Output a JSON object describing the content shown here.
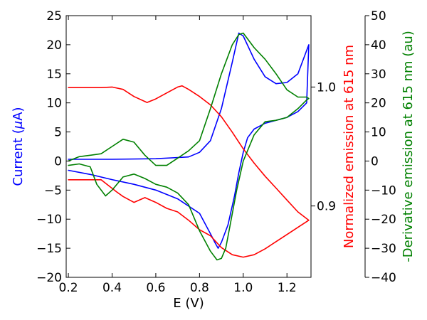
{
  "chart_data": {
    "type": "line",
    "xlabel": "E (V)",
    "xlim": [
      0.19,
      1.31
    ],
    "xticks": [
      "0.2",
      "0.4",
      "0.6",
      "0.8",
      "1.0",
      "1.2"
    ],
    "axes": {
      "left": {
        "label_prefix": "Current (",
        "label_symbol": "μ",
        "label_suffix": "A)",
        "color": "#0000ff",
        "ylim": [
          -20,
          25
        ],
        "ticks": [
          "25",
          "20",
          "15",
          "10",
          "5",
          "0",
          "−5",
          "−10",
          "−15",
          "−20"
        ]
      },
      "right_inner": {
        "label": "Normalized emission at 615 nm",
        "color": "#ff0000",
        "ylim": [
          0.84,
          1.06
        ],
        "ticks": [
          "1.0",
          "0.9"
        ]
      },
      "right_outer": {
        "label": "-Derivative emission at 615 nm (au)",
        "color": "#008000",
        "ylim": [
          -40,
          50
        ],
        "ticks": [
          "50",
          "40",
          "30",
          "20",
          "10",
          "0",
          "−10",
          "−20",
          "−30",
          "−40"
        ]
      }
    },
    "series": [
      {
        "axis": "left",
        "color": "#0000ff",
        "points": [
          [
            0.2,
            0.3
          ],
          [
            0.4,
            0.3
          ],
          [
            0.6,
            0.4
          ],
          [
            0.75,
            0.7
          ],
          [
            0.8,
            1.5
          ],
          [
            0.85,
            3.5
          ],
          [
            0.9,
            9.0
          ],
          [
            0.95,
            17.0
          ],
          [
            0.98,
            22.0
          ],
          [
            1.0,
            21.5
          ],
          [
            1.05,
            17.5
          ],
          [
            1.1,
            14.5
          ],
          [
            1.15,
            13.3
          ],
          [
            1.2,
            13.5
          ],
          [
            1.25,
            15.0
          ],
          [
            1.3,
            20.0
          ],
          [
            1.29,
            10.0
          ],
          [
            1.25,
            8.5
          ],
          [
            1.2,
            7.5
          ],
          [
            1.15,
            7.0
          ],
          [
            1.1,
            6.5
          ],
          [
            1.05,
            5.5
          ],
          [
            1.02,
            4.0
          ],
          [
            1.0,
            1.5
          ],
          [
            0.98,
            -2.0
          ],
          [
            0.96,
            -6.0
          ],
          [
            0.93,
            -11.0
          ],
          [
            0.9,
            -14.0
          ],
          [
            0.885,
            -15.0
          ],
          [
            0.87,
            -14.0
          ],
          [
            0.85,
            -12.5
          ],
          [
            0.8,
            -9.0
          ],
          [
            0.7,
            -6.5
          ],
          [
            0.6,
            -5.0
          ],
          [
            0.5,
            -4.0
          ],
          [
            0.4,
            -3.2
          ],
          [
            0.3,
            -2.3
          ],
          [
            0.2,
            -1.6
          ]
        ]
      },
      {
        "axis": "right_inner",
        "color": "#ff0000",
        "points": [
          [
            0.2,
            0.9995
          ],
          [
            0.35,
            0.9995
          ],
          [
            0.4,
            1.0
          ],
          [
            0.45,
            0.998
          ],
          [
            0.5,
            0.992
          ],
          [
            0.56,
            0.987
          ],
          [
            0.6,
            0.99
          ],
          [
            0.65,
            0.995
          ],
          [
            0.7,
            1.0
          ],
          [
            0.72,
            1.001
          ],
          [
            0.75,
            0.998
          ],
          [
            0.8,
            0.992
          ],
          [
            0.85,
            0.985
          ],
          [
            0.9,
            0.975
          ],
          [
            0.95,
            0.962
          ],
          [
            1.0,
            0.948
          ],
          [
            1.05,
            0.936
          ],
          [
            1.1,
            0.925
          ],
          [
            1.15,
            0.915
          ],
          [
            1.2,
            0.905
          ],
          [
            1.25,
            0.895
          ],
          [
            1.3,
            0.888
          ],
          [
            1.25,
            0.882
          ],
          [
            1.2,
            0.876
          ],
          [
            1.15,
            0.87
          ],
          [
            1.1,
            0.864
          ],
          [
            1.05,
            0.859
          ],
          [
            1.0,
            0.857
          ],
          [
            0.95,
            0.859
          ],
          [
            0.9,
            0.865
          ],
          [
            0.85,
            0.875
          ],
          [
            0.8,
            0.88
          ],
          [
            0.75,
            0.888
          ],
          [
            0.7,
            0.895
          ],
          [
            0.65,
            0.898
          ],
          [
            0.6,
            0.903
          ],
          [
            0.55,
            0.907
          ],
          [
            0.5,
            0.903
          ],
          [
            0.45,
            0.908
          ],
          [
            0.42,
            0.912
          ],
          [
            0.35,
            0.922
          ],
          [
            0.2,
            0.922
          ]
        ]
      },
      {
        "axis": "right_outer",
        "color": "#008000",
        "points": [
          [
            0.2,
            0.0
          ],
          [
            0.25,
            1.5
          ],
          [
            0.3,
            2.0
          ],
          [
            0.35,
            2.5
          ],
          [
            0.4,
            5.0
          ],
          [
            0.45,
            7.5
          ],
          [
            0.5,
            6.5
          ],
          [
            0.55,
            2.0
          ],
          [
            0.6,
            -1.5
          ],
          [
            0.65,
            -1.5
          ],
          [
            0.7,
            1.0
          ],
          [
            0.75,
            3.5
          ],
          [
            0.8,
            7.0
          ],
          [
            0.85,
            18.0
          ],
          [
            0.9,
            30.0
          ],
          [
            0.95,
            40.0
          ],
          [
            0.98,
            43.5
          ],
          [
            1.0,
            44.0
          ],
          [
            1.05,
            39.0
          ],
          [
            1.1,
            35.0
          ],
          [
            1.15,
            30.0
          ],
          [
            1.2,
            24.5
          ],
          [
            1.25,
            22.0
          ],
          [
            1.29,
            22.0
          ],
          [
            1.3,
            21.5
          ],
          [
            1.29,
            21.0
          ],
          [
            1.25,
            18.0
          ],
          [
            1.2,
            15.0
          ],
          [
            1.15,
            14.0
          ],
          [
            1.1,
            13.5
          ],
          [
            1.05,
            9.0
          ],
          [
            1.0,
            0.0
          ],
          [
            0.97,
            -10.0
          ],
          [
            0.94,
            -22.0
          ],
          [
            0.92,
            -30.0
          ],
          [
            0.9,
            -33.5
          ],
          [
            0.88,
            -34.0
          ],
          [
            0.85,
            -31.0
          ],
          [
            0.8,
            -24.0
          ],
          [
            0.75,
            -15.0
          ],
          [
            0.7,
            -11.0
          ],
          [
            0.65,
            -9.0
          ],
          [
            0.6,
            -8.0
          ],
          [
            0.55,
            -6.0
          ],
          [
            0.5,
            -4.5
          ],
          [
            0.45,
            -5.5
          ],
          [
            0.4,
            -10.0
          ],
          [
            0.37,
            -12.0
          ],
          [
            0.33,
            -8.0
          ],
          [
            0.3,
            -2.0
          ],
          [
            0.25,
            -1.0
          ],
          [
            0.2,
            -1.5
          ]
        ]
      }
    ]
  }
}
